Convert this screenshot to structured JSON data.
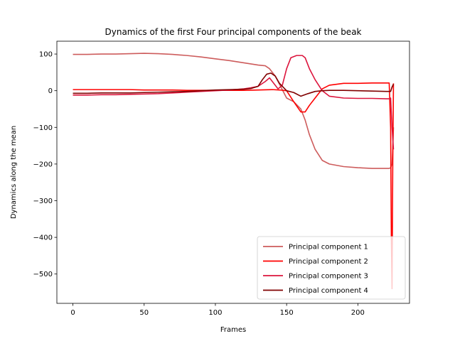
{
  "chart_data": {
    "type": "line",
    "title": "Dynamics of the first Four principal components of the beak",
    "xlabel": "Frames",
    "ylabel": "Dynamics along the mean",
    "xlim": [
      -11.25,
      236.25
    ],
    "ylim": [
      -580,
      135
    ],
    "xticks": [
      0,
      50,
      100,
      150,
      200
    ],
    "yticks": [
      100,
      0,
      -100,
      -200,
      -300,
      -400,
      -500
    ],
    "grid": false,
    "legend_position": "lower right",
    "series": [
      {
        "name": "Principal component 1",
        "color": "#cd5c5c",
        "x": [
          0,
          10,
          20,
          30,
          40,
          50,
          60,
          70,
          80,
          90,
          100,
          110,
          120,
          130,
          135,
          138,
          142,
          146,
          150,
          155,
          160,
          163,
          166,
          170,
          175,
          180,
          190,
          200,
          210,
          220,
          222,
          223,
          224,
          224.5,
          225
        ],
        "y": [
          99,
          99,
          100,
          100,
          101,
          102,
          101,
          99,
          96,
          92,
          87,
          82,
          76,
          70,
          68,
          60,
          40,
          10,
          -20,
          -30,
          -50,
          -80,
          -120,
          -160,
          -190,
          -200,
          -207,
          -210,
          -212,
          -212,
          -212,
          -210,
          -200,
          -160,
          -100
        ]
      },
      {
        "name": "Principal component 2",
        "color": "#ff0000",
        "x": [
          0,
          10,
          20,
          30,
          40,
          50,
          60,
          70,
          80,
          90,
          100,
          110,
          120,
          130,
          140,
          145,
          150,
          155,
          160,
          163,
          166,
          170,
          175,
          180,
          190,
          200,
          210,
          220,
          222,
          223,
          223.5,
          224,
          224.5,
          225
        ],
        "y": [
          3,
          3,
          3,
          3,
          3,
          2,
          2,
          2,
          1,
          1,
          1,
          1,
          1,
          2,
          3,
          2,
          0,
          -30,
          -58,
          -58,
          -40,
          -20,
          5,
          15,
          20,
          20,
          21,
          21,
          21,
          -100,
          -400,
          -540,
          -200,
          20
        ]
      },
      {
        "name": "Principal component 3",
        "color": "#dc143c",
        "x": [
          0,
          10,
          20,
          30,
          40,
          50,
          60,
          70,
          80,
          90,
          100,
          110,
          120,
          125,
          130,
          135,
          138,
          141,
          144,
          147,
          150,
          153,
          157,
          161,
          163,
          166,
          170,
          175,
          180,
          190,
          200,
          210,
          220,
          222,
          223,
          224,
          225
        ],
        "y": [
          -12,
          -12,
          -11,
          -11,
          -10,
          -9,
          -8,
          -6,
          -4,
          -2,
          0,
          2,
          5,
          8,
          12,
          25,
          35,
          20,
          5,
          15,
          60,
          90,
          96,
          96,
          90,
          60,
          30,
          0,
          -15,
          -20,
          -21,
          -21,
          -22,
          -22,
          -20,
          -100,
          -160
        ]
      },
      {
        "name": "Principal component 4",
        "color": "#800000",
        "x": [
          0,
          10,
          20,
          30,
          40,
          50,
          60,
          70,
          80,
          90,
          100,
          110,
          120,
          125,
          130,
          133,
          136,
          139,
          142,
          145,
          150,
          155,
          160,
          165,
          170,
          175,
          180,
          190,
          200,
          210,
          220,
          222,
          223,
          224,
          225
        ],
        "y": [
          -7,
          -7,
          -6,
          -6,
          -6,
          -5,
          -4,
          -3,
          -2,
          0,
          2,
          3,
          4,
          6,
          12,
          30,
          45,
          48,
          40,
          20,
          0,
          -5,
          -15,
          -8,
          -2,
          0,
          1,
          1,
          0,
          -1,
          -2,
          -2,
          -2,
          10,
          18
        ]
      }
    ]
  }
}
